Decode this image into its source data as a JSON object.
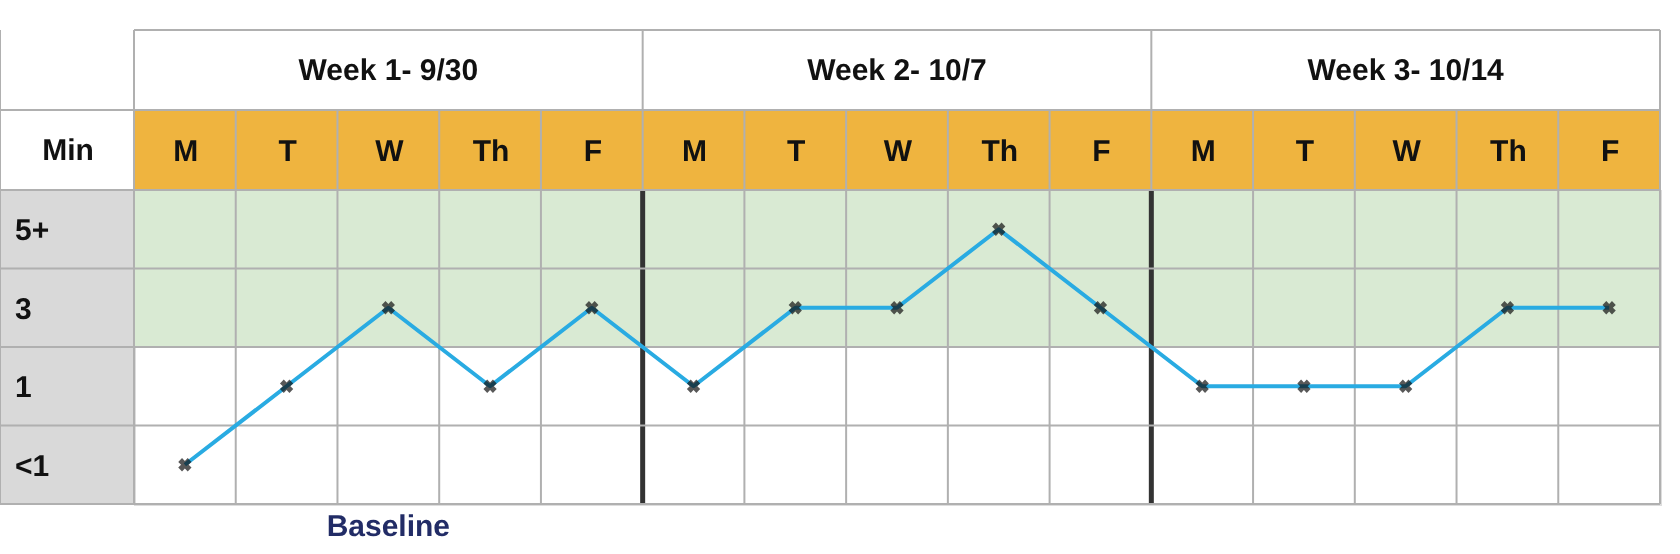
{
  "chart_data": {
    "type": "line",
    "ylabel": "Min",
    "categories": [
      "M",
      "T",
      "W",
      "Th",
      "F",
      "M",
      "T",
      "W",
      "Th",
      "F",
      "M",
      "T",
      "W",
      "Th",
      "F"
    ],
    "series": [
      {
        "color": "#29abe2",
        "values": [
          -1,
          1,
          3,
          1,
          3,
          1,
          3,
          3,
          5,
          3,
          1,
          1,
          1,
          3,
          3
        ]
      }
    ],
    "ylim": [
      -2,
      6
    ],
    "yticks": [
      {
        "value": -1,
        "label": "<1"
      },
      1,
      3,
      {
        "value": 5,
        "label": "5+"
      }
    ],
    "bands": [
      {
        "axis": "y",
        "from": 2,
        "to": 6,
        "color": "#d9ead3"
      }
    ],
    "annotations": [
      "Week 1- 9/30",
      "Week 2- 10/7",
      "Week 3- 10/14",
      "Baseline"
    ],
    "marker": "cross",
    "grid": true
  }
}
